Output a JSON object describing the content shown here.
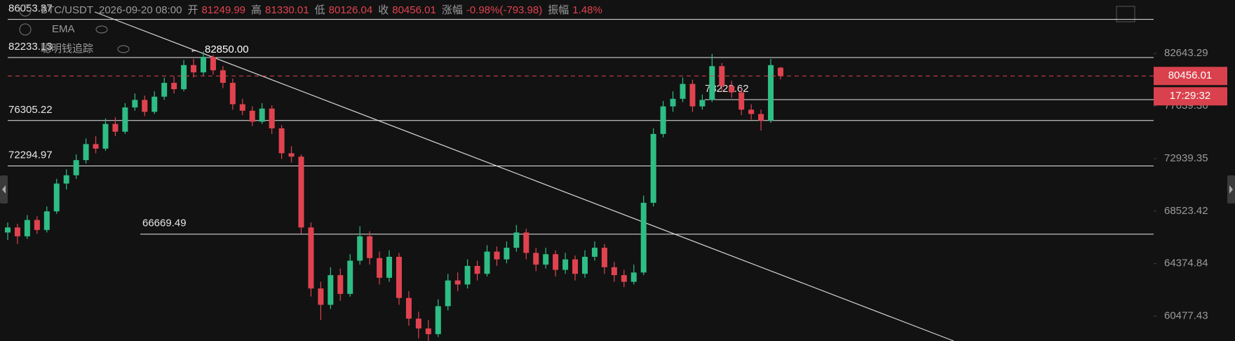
{
  "chart_data": {
    "type": "candlestick",
    "header": {
      "symbol": "BTC/USDT",
      "time": "2026-09-20 08:00",
      "items": [
        [
          "开",
          "81249.99"
        ],
        [
          "高",
          "81330.01"
        ],
        [
          "低",
          "80126.04"
        ],
        [
          "收",
          "80456.01"
        ],
        [
          "涨幅",
          "-0.98%(-793.98)"
        ],
        [
          "振幅",
          "1.48%"
        ]
      ]
    },
    "indicators": [
      "EMA",
      "聪明钱追踪"
    ],
    "ylim": [
      58720,
      88056
    ],
    "log_scale": true,
    "yticks": [
      82643.29,
      77639.36,
      72939.35,
      68523.42,
      64374.84,
      60477.43
    ],
    "levels": [
      86053.37,
      82233.13,
      78223.62,
      76305.22,
      72294.97,
      66669.49
    ],
    "high_label": "82850.00",
    "last_price": 80456.01,
    "countdown": "17:29:32",
    "up_color": "#2ebd85",
    "down_color": "#e0434f",
    "candles": {
      "open": [
        66800,
        67200,
        66500,
        67800,
        67000,
        68500,
        70800,
        71500,
        72800,
        74200,
        73800,
        76000,
        75300,
        77500,
        78200,
        77100,
        78500,
        79800,
        79200,
        81500,
        80800,
        82300,
        81000,
        79800,
        77800,
        77200,
        76200,
        77400,
        75600,
        73400,
        73100,
        67200,
        62500,
        61300,
        63500,
        62100,
        64600,
        66500,
        64800,
        63300,
        64900,
        61800,
        60300,
        59600,
        59200,
        61200,
        63100,
        62800,
        64200,
        63600,
        65300,
        64700,
        65600,
        66800,
        65200,
        64300,
        65100,
        63900,
        64700,
        63600,
        64900,
        65600,
        64100,
        63500,
        63000,
        63700,
        69200,
        75100,
        77600,
        78300,
        79700,
        77600,
        78200,
        81400,
        79500,
        78900,
        77300,
        76900,
        76300,
        81249.99
      ],
      "high": [
        67600,
        67500,
        68200,
        68100,
        68900,
        71200,
        72000,
        73300,
        74700,
        74900,
        76500,
        76600,
        77900,
        78800,
        78600,
        79000,
        80300,
        80400,
        82000,
        82100,
        82850,
        82500,
        81400,
        80200,
        78300,
        77600,
        77900,
        77700,
        75900,
        74000,
        73300,
        67600,
        63000,
        64100,
        64000,
        65100,
        67300,
        66900,
        65300,
        65400,
        65200,
        62300,
        60800,
        60200,
        61700,
        63600,
        63700,
        64700,
        64600,
        65800,
        65700,
        66100,
        67400,
        67100,
        65600,
        65600,
        65400,
        65200,
        65000,
        65400,
        66100,
        65900,
        64500,
        63900,
        64300,
        69800,
        75600,
        78100,
        79000,
        80300,
        80100,
        78700,
        82600,
        81700,
        80000,
        79300,
        77800,
        77300,
        82100,
        81330.01
      ],
      "low": [
        66200,
        65900,
        66300,
        66700,
        66800,
        68300,
        70300,
        71200,
        72500,
        73400,
        73600,
        74900,
        75100,
        77200,
        76700,
        76900,
        78200,
        78800,
        79000,
        80300,
        80500,
        80600,
        79300,
        77300,
        76800,
        75800,
        76000,
        75100,
        72900,
        72600,
        66700,
        61900,
        60200,
        61000,
        61600,
        61900,
        64300,
        64300,
        62800,
        63000,
        61300,
        59800,
        58900,
        58700,
        59000,
        60900,
        62300,
        62500,
        63100,
        63400,
        64200,
        64400,
        65300,
        64700,
        63800,
        64000,
        63400,
        63600,
        63100,
        63300,
        64600,
        63600,
        63000,
        62600,
        62800,
        63500,
        68900,
        74800,
        77100,
        78000,
        77100,
        77300,
        78000,
        79000,
        78400,
        76800,
        76400,
        75400,
        76100,
        80126.04
      ],
      "close": [
        67200,
        66500,
        67800,
        67000,
        68500,
        70800,
        71500,
        72800,
        74200,
        73800,
        76000,
        75300,
        77500,
        78200,
        77100,
        78500,
        79800,
        79200,
        81500,
        80800,
        82300,
        81000,
        79800,
        77800,
        77200,
        76200,
        77400,
        75600,
        73400,
        73100,
        67200,
        62500,
        61300,
        63500,
        62100,
        64600,
        66500,
        64800,
        63300,
        64900,
        61800,
        60300,
        59600,
        59200,
        61200,
        63100,
        62800,
        64200,
        63600,
        65300,
        64700,
        65600,
        66800,
        65200,
        64300,
        65100,
        63900,
        64700,
        63600,
        64900,
        65600,
        64100,
        63500,
        63000,
        63700,
        69200,
        75100,
        77600,
        78300,
        79700,
        77600,
        78200,
        81400,
        79500,
        78900,
        77300,
        76900,
        76300,
        81500,
        80456.01
      ]
    }
  }
}
